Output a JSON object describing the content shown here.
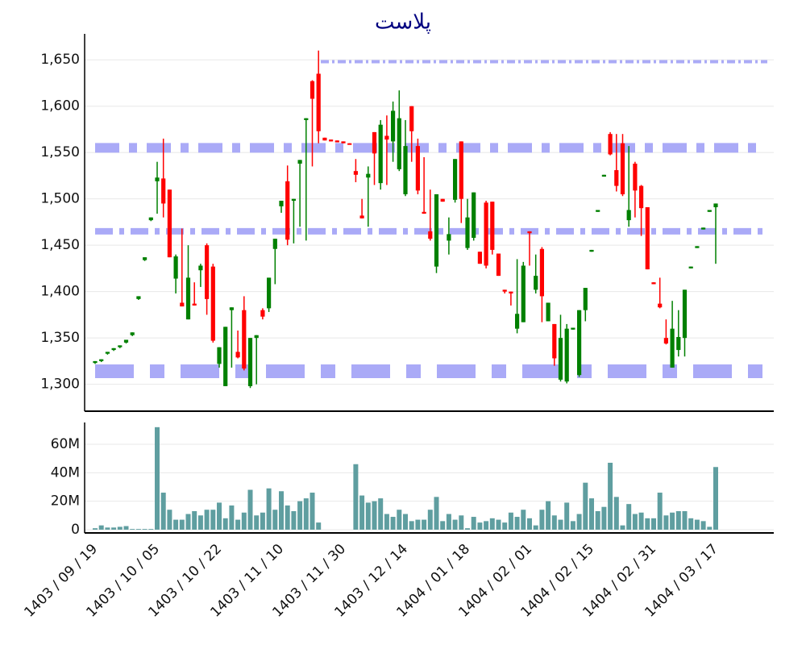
{
  "chart_data": {
    "type": "candlestick",
    "title": "پلاست",
    "categories": [
      "1403 / 09 / 19",
      null,
      null,
      null,
      null,
      null,
      null,
      null,
      null,
      null,
      "1403 / 10 / 05",
      null,
      null,
      null,
      null,
      null,
      null,
      null,
      null,
      null,
      "1403 / 10 / 22",
      null,
      null,
      null,
      null,
      null,
      null,
      null,
      null,
      null,
      "1403 / 11 / 10",
      null,
      null,
      null,
      null,
      null,
      null,
      null,
      null,
      null,
      "1403 / 11 / 30",
      null,
      null,
      null,
      null,
      null,
      null,
      null,
      null,
      null,
      "1403 / 12 / 14",
      null,
      null,
      null,
      null,
      null,
      null,
      null,
      null,
      null,
      "1404 / 01 / 18",
      null,
      null,
      null,
      null,
      null,
      null,
      null,
      null,
      null,
      "1404 / 02 / 01",
      null,
      null,
      null,
      null,
      null,
      null,
      null,
      null,
      null,
      "1404 / 02 / 15",
      null,
      null,
      null,
      null,
      null,
      null,
      null,
      null,
      null,
      "1404 / 02 / 31",
      null,
      null,
      null,
      null,
      null,
      null,
      null,
      null,
      null,
      "1404 / 03 / 17"
    ],
    "open": [
      1323,
      1325,
      1333,
      1337,
      1340,
      1345,
      1353,
      1392,
      1434,
      1477,
      1519,
      1522,
      1510,
      1414,
      1388,
      1370,
      1387,
      1423,
      1450,
      1427,
      1322,
      1298,
      1380,
      1335,
      1380,
      1298,
      1350,
      1380,
      1382,
      1446,
      1492,
      1519,
      1498,
      1538,
      1585,
      1627,
      1635,
      1566,
      1564,
      1563,
      1562,
      1560,
      1530,
      1482,
      1523,
      1572,
      1517,
      1568,
      1562,
      1532,
      1505,
      1600,
      1557,
      1486,
      1465,
      1427,
      1500,
      1455,
      1499,
      1562,
      1447,
      1458,
      1443,
      1496,
      1497,
      1441,
      1402,
      1400,
      1360,
      1367,
      1465,
      1402,
      1446,
      1368,
      1365,
      1305,
      1303,
      1359,
      1310,
      1380,
      1443,
      1486,
      1524,
      1570,
      1531,
      1560,
      1477,
      1538,
      1514,
      1491,
      1410,
      1387,
      1350,
      1318,
      1337,
      1350,
      1425,
      1447,
      1467,
      1486,
      1491
    ],
    "high": [
      1325,
      1327,
      1335,
      1339,
      1342,
      1348,
      1356,
      1395,
      1437,
      1480,
      1540,
      1565,
      1510,
      1440,
      1468,
      1450,
      1410,
      1430,
      1452,
      1430,
      1340,
      1362,
      1383,
      1358,
      1395,
      1350,
      1353,
      1382,
      1415,
      1457,
      1498,
      1536,
      1500,
      1542,
      1587,
      1628,
      1660,
      1566,
      1564,
      1563,
      1562,
      1560,
      1543,
      1500,
      1535,
      1572,
      1585,
      1590,
      1605,
      1617,
      1585,
      1600,
      1565,
      1545,
      1510,
      1505,
      1500,
      1480,
      1543,
      1562,
      1500,
      1507,
      1443,
      1498,
      1497,
      1441,
      1402,
      1400,
      1435,
      1432,
      1465,
      1440,
      1448,
      1388,
      1365,
      1375,
      1365,
      1361,
      1380,
      1404,
      1445,
      1488,
      1526,
      1572,
      1570,
      1570,
      1557,
      1540,
      1515,
      1491,
      1410,
      1415,
      1370,
      1390,
      1380,
      1402,
      1427,
      1449,
      1469,
      1488,
      1495
    ],
    "low": [
      1322,
      1324,
      1332,
      1336,
      1339,
      1344,
      1352,
      1391,
      1433,
      1476,
      1484,
      1480,
      1437,
      1398,
      1384,
      1370,
      1385,
      1405,
      1375,
      1345,
      1318,
      1298,
      1318,
      1328,
      1315,
      1296,
      1300,
      1370,
      1378,
      1408,
      1485,
      1450,
      1452,
      1470,
      1455,
      1535,
      1560,
      1563,
      1562,
      1561,
      1560,
      1559,
      1518,
      1479,
      1470,
      1515,
      1510,
      1515,
      1540,
      1530,
      1503,
      1540,
      1505,
      1484,
      1455,
      1420,
      1497,
      1440,
      1496,
      1474,
      1445,
      1455,
      1430,
      1425,
      1440,
      1417,
      1398,
      1385,
      1355,
      1367,
      1428,
      1398,
      1367,
      1368,
      1320,
      1303,
      1301,
      1359,
      1308,
      1368,
      1443,
      1486,
      1524,
      1547,
      1508,
      1503,
      1470,
      1480,
      1460,
      1424,
      1408,
      1382,
      1343,
      1318,
      1330,
      1330,
      1425,
      1447,
      1467,
      1486,
      1430
    ],
    "close": [
      1325,
      1327,
      1335,
      1339,
      1342,
      1348,
      1356,
      1395,
      1437,
      1480,
      1523,
      1495,
      1437,
      1438,
      1384,
      1415,
      1385,
      1428,
      1392,
      1347,
      1340,
      1362,
      1383,
      1329,
      1317,
      1350,
      1353,
      1373,
      1415,
      1457,
      1498,
      1456,
      1500,
      1542,
      1587,
      1608,
      1573,
      1563,
      1562,
      1561,
      1560,
      1559,
      1526,
      1479,
      1527,
      1549,
      1580,
      1564,
      1595,
      1587,
      1557,
      1573,
      1509,
      1484,
      1457,
      1505,
      1497,
      1462,
      1543,
      1500,
      1480,
      1507,
      1430,
      1428,
      1445,
      1417,
      1400,
      1398,
      1376,
      1428,
      1463,
      1417,
      1395,
      1388,
      1328,
      1350,
      1360,
      1361,
      1380,
      1404,
      1445,
      1488,
      1526,
      1548,
      1514,
      1505,
      1488,
      1509,
      1490,
      1424,
      1408,
      1383,
      1344,
      1360,
      1351,
      1402,
      1427,
      1449,
      1469,
      1488,
      1495
    ],
    "volume": [
      1000000,
      3000000,
      1500000,
      1500000,
      2000000,
      2500000,
      500000,
      500000,
      500000,
      500000,
      72000000,
      26000000,
      14000000,
      7000000,
      7000000,
      11000000,
      13000000,
      10000000,
      14000000,
      14000000,
      19000000,
      8000000,
      17000000,
      7000000,
      12000000,
      28000000,
      10000000,
      12000000,
      29000000,
      14000000,
      27000000,
      17000000,
      13000000,
      20000000,
      22000000,
      26000000,
      5000000,
      0,
      0,
      0,
      0,
      0,
      46000000,
      24000000,
      19000000,
      20000000,
      22000000,
      11000000,
      9000000,
      14000000,
      11000000,
      6000000,
      7000000,
      7000000,
      14000000,
      23000000,
      6000000,
      11000000,
      7000000,
      10000000,
      1000000,
      9000000,
      5000000,
      6000000,
      8000000,
      7000000,
      5000000,
      12000000,
      9000000,
      14000000,
      8000000,
      3000000,
      14000000,
      20000000,
      10000000,
      7000000,
      19000000,
      6000000,
      11000000,
      33000000,
      22000000,
      13000000,
      16000000,
      47000000,
      23000000,
      3000000,
      18000000,
      11000000,
      12000000,
      8000000,
      8000000,
      26000000,
      10000000,
      12000000,
      13000000,
      13000000,
      8000000,
      7000000,
      6000000,
      2000000,
      44000000
    ],
    "up_color": "#008000",
    "down_color": "#ff0000",
    "volume_color": "#5f9ea0",
    "title_color": "#000080",
    "levels": [
      1648,
      1555,
      1465,
      1314
    ],
    "level_color": "#aaaaf7",
    "ylim": [
      1271,
      1678
    ],
    "yticks": [
      {
        "value": 1300,
        "label": "1,300"
      },
      {
        "value": 1350,
        "label": "1,350"
      },
      {
        "value": 1400,
        "label": "1,400"
      },
      {
        "value": 1450,
        "label": "1,450"
      },
      {
        "value": 1500,
        "label": "1,500"
      },
      {
        "value": 1550,
        "label": "1,550"
      },
      {
        "value": 1600,
        "label": "1,600"
      },
      {
        "value": 1650,
        "label": "1,650"
      }
    ],
    "volume_ylim": [
      -2300000,
      75300000
    ],
    "volume_yticks": [
      {
        "value": 0,
        "label": "0"
      },
      {
        "value": 20000000,
        "label": "20M"
      },
      {
        "value": 40000000,
        "label": "40M"
      },
      {
        "value": 60000000,
        "label": "60M"
      }
    ],
    "grid": true
  }
}
